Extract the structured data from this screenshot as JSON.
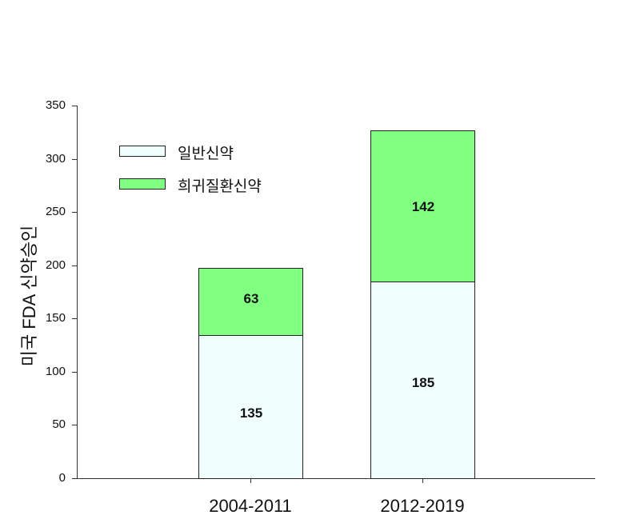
{
  "chart_data": {
    "type": "bar",
    "stacked": true,
    "title": "",
    "xlabel": "",
    "ylabel": "미국 FDA 신약승인",
    "categories": [
      "2004-2011",
      "2012-2019"
    ],
    "series": [
      {
        "name": "일반신약",
        "values": [
          135,
          185
        ],
        "color": "#f0fefe"
      },
      {
        "name": "희귀질환신약",
        "values": [
          63,
          142
        ],
        "color": "#80ff80"
      }
    ],
    "ylim": [
      0,
      350
    ],
    "yticks": [
      0,
      50,
      100,
      150,
      200,
      250,
      300,
      350
    ],
    "grid": false,
    "legend_position": "upper-left"
  },
  "labels": {
    "ylabel": "미국 FDA 신약승인",
    "x": [
      "2004-2011",
      "2012-2019"
    ],
    "legend": [
      "일반신약",
      "희귀질환신약"
    ],
    "values": {
      "bar0_s0": "135",
      "bar0_s1": "63",
      "bar1_s0": "185",
      "bar1_s1": "142"
    }
  }
}
